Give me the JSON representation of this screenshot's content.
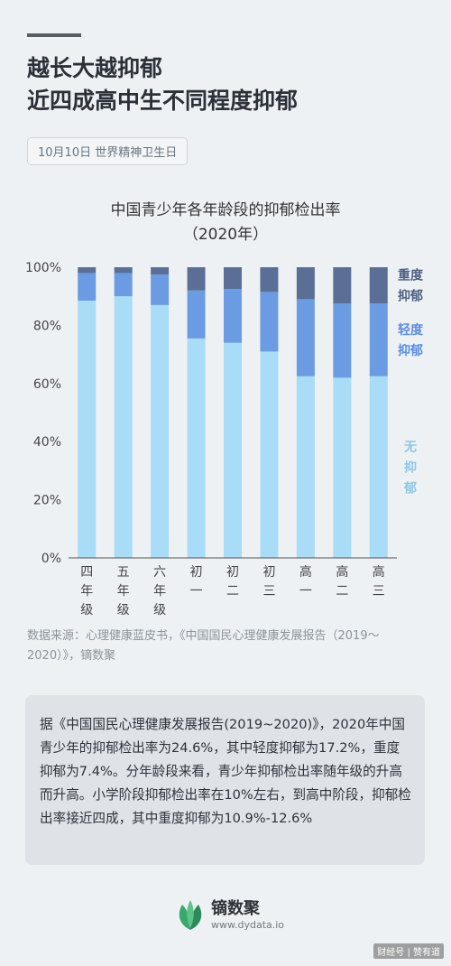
{
  "header": {
    "title_line1": "越长大越抑郁",
    "title_line2": "近四成高中生不同程度抑郁",
    "date_badge": "10月10日 世界精神卫生日"
  },
  "chart_data": {
    "type": "bar",
    "stacked": true,
    "title": "中国青少年各年龄段的抑郁检出率",
    "subtitle": "（2020年）",
    "categories": [
      "四年级",
      "五年级",
      "六年级",
      "初一",
      "初二",
      "初三",
      "高一",
      "高二",
      "高三"
    ],
    "series": [
      {
        "name": "无抑郁",
        "color": "#a9dcf6",
        "values": [
          88.5,
          90,
          87,
          75.5,
          74,
          71,
          62.5,
          62,
          62.5
        ]
      },
      {
        "name": "轻度抑郁",
        "color": "#6b9be3",
        "values": [
          9.5,
          8,
          10.5,
          16.5,
          18.5,
          20.5,
          26.5,
          25.5,
          25
        ]
      },
      {
        "name": "重度抑郁",
        "color": "#5b6f96",
        "values": [
          2,
          2,
          2.5,
          8,
          7.5,
          8.5,
          11,
          12.5,
          12.5
        ]
      }
    ],
    "y_ticks": [
      "0%",
      "20%",
      "40%",
      "60%",
      "80%",
      "100%"
    ],
    "ylim": [
      0,
      100
    ],
    "grid": false,
    "legend_placement": "right, inline beside stacked segments"
  },
  "source": {
    "text": "数据来源：心理健康蓝皮书，《中国国民心理健康发展报告（2019～2020）》，镝数聚"
  },
  "summary": {
    "text": "据《中国国民心理健康发展报告(2019~2020)》，2020年中国青少年的抑郁检出率为24.6%，其中轻度抑郁为17.2%，重度抑郁为7.4%。分年龄段来看，青少年抑郁检出率随年级的升高而升高。小学阶段抑郁检出率在10%左右，到高中阶段，抑郁检出率接近四成，其中重度抑郁为10.9%-12.6%"
  },
  "footer": {
    "brand_name": "镝数聚",
    "brand_site": "www.dydata.io",
    "corner_mark": "财经号 | 赞有道",
    "logo_icon": "leaf-logo-icon"
  }
}
